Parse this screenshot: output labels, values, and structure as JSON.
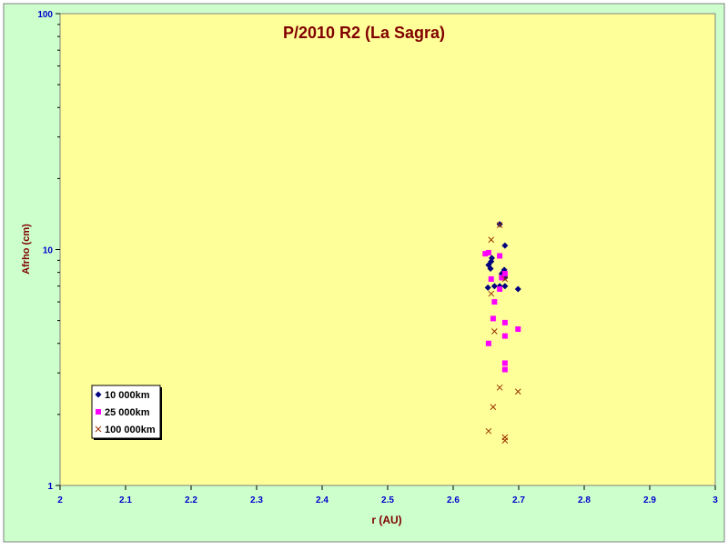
{
  "chart_data": {
    "type": "scatter",
    "title": "P/2010 R2 (La Sagra)",
    "xlabel": "r (AU)",
    "ylabel": "Afrho (cm)",
    "xlim": [
      2,
      3
    ],
    "ylim": [
      1,
      100
    ],
    "yscale": "log",
    "x_ticks": [
      "2",
      "2.1",
      "2.2",
      "2.3",
      "2.4",
      "2.5",
      "2.6",
      "2.7",
      "2.8",
      "2.9",
      "3"
    ],
    "y_ticks": [
      "1",
      "10",
      "100"
    ],
    "grid": false,
    "legend_position": "bottom-left",
    "colors": {
      "outer_background": "#ccffcc",
      "plot_background": "#ffff99",
      "title": "#800000",
      "axis_label": "#800000",
      "tick_label": "#0000cc"
    },
    "series": [
      {
        "name": "10 000km",
        "marker": "diamond",
        "color": "#000080",
        "points": [
          [
            2.671,
            12.8
          ],
          [
            2.679,
            10.4
          ],
          [
            2.678,
            8.2
          ],
          [
            2.674,
            7.9
          ],
          [
            2.679,
            7.6
          ],
          [
            2.659,
            9.2
          ],
          [
            2.658,
            8.9
          ],
          [
            2.654,
            8.6
          ],
          [
            2.657,
            8.3
          ],
          [
            2.653,
            6.9
          ],
          [
            2.663,
            7.0
          ],
          [
            2.679,
            7.0
          ],
          [
            2.699,
            6.8
          ],
          [
            2.671,
            7.0
          ]
        ]
      },
      {
        "name": "25 000km",
        "marker": "square",
        "color": "#ff00ff",
        "points": [
          [
            2.649,
            9.6
          ],
          [
            2.654,
            9.7
          ],
          [
            2.671,
            9.4
          ],
          [
            2.679,
            7.9
          ],
          [
            2.674,
            7.6
          ],
          [
            2.658,
            7.5
          ],
          [
            2.671,
            6.8
          ],
          [
            2.663,
            6.0
          ],
          [
            2.661,
            5.1
          ],
          [
            2.679,
            4.9
          ],
          [
            2.699,
            4.6
          ],
          [
            2.679,
            4.3
          ],
          [
            2.654,
            4.0
          ],
          [
            2.679,
            3.3
          ],
          [
            2.679,
            3.1
          ]
        ]
      },
      {
        "name": "100 000km",
        "marker": "x",
        "color": "#993300",
        "points": [
          [
            2.671,
            12.7
          ],
          [
            2.658,
            11.0
          ],
          [
            2.679,
            7.5
          ],
          [
            2.658,
            6.5
          ],
          [
            2.663,
            4.5
          ],
          [
            2.671,
            2.6
          ],
          [
            2.699,
            2.5
          ],
          [
            2.661,
            2.15
          ],
          [
            2.654,
            1.7
          ],
          [
            2.679,
            1.6
          ],
          [
            2.679,
            1.55
          ]
        ]
      }
    ]
  }
}
